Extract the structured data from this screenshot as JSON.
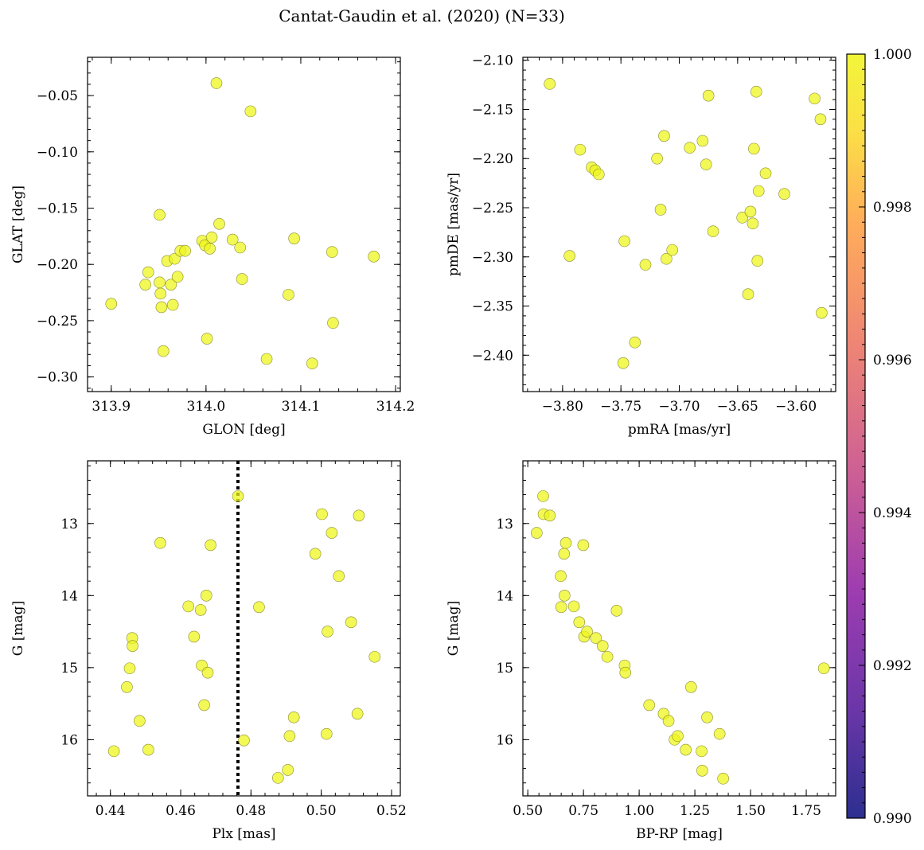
{
  "figure_title": "Cantat-Gaudin et al. (2020) (N=33)",
  "chart_data": [
    {
      "type": "scatter",
      "id": "glon-glat",
      "title": "",
      "xlabel": "GLON [deg]",
      "ylabel": "GLAT [deg]",
      "xlim": [
        313.875,
        314.205
      ],
      "ylim": [
        -0.313,
        -0.016
      ],
      "xticks": [
        313.9,
        314.0,
        314.1,
        314.2
      ],
      "xtick_labels": [
        "313.9",
        "314.0",
        "314.1",
        "314.2"
      ],
      "xminor": 0.02,
      "yticks": [
        -0.3,
        -0.25,
        -0.2,
        -0.15,
        -0.1,
        -0.05
      ],
      "ytick_labels": [
        "−0.30",
        "−0.25",
        "−0.20",
        "−0.15",
        "−0.10",
        "−0.05"
      ],
      "yminor": 0.01,
      "y_inverted": false,
      "points": [
        [
          313.9,
          -0.235
        ],
        [
          313.936,
          -0.218
        ],
        [
          313.939,
          -0.207
        ],
        [
          313.951,
          -0.156
        ],
        [
          313.951,
          -0.216
        ],
        [
          313.952,
          -0.226
        ],
        [
          313.953,
          -0.238
        ],
        [
          313.955,
          -0.277
        ],
        [
          313.959,
          -0.197
        ],
        [
          313.963,
          -0.218
        ],
        [
          313.965,
          -0.236
        ],
        [
          313.967,
          -0.195
        ],
        [
          313.97,
          -0.211
        ],
        [
          313.973,
          -0.188
        ],
        [
          313.978,
          -0.188
        ],
        [
          313.996,
          -0.179
        ],
        [
          313.999,
          -0.183
        ],
        [
          314.001,
          -0.266
        ],
        [
          314.004,
          -0.186
        ],
        [
          314.006,
          -0.176
        ],
        [
          314.011,
          -0.039
        ],
        [
          314.014,
          -0.164
        ],
        [
          314.028,
          -0.178
        ],
        [
          314.036,
          -0.185
        ],
        [
          314.038,
          -0.213
        ],
        [
          314.047,
          -0.064
        ],
        [
          314.064,
          -0.284
        ],
        [
          314.087,
          -0.227
        ],
        [
          314.093,
          -0.177
        ],
        [
          314.112,
          -0.288
        ],
        [
          314.133,
          -0.189
        ],
        [
          314.134,
          -0.252
        ],
        [
          314.177,
          -0.193
        ]
      ]
    },
    {
      "type": "scatter",
      "id": "pmra-pmde",
      "title": "",
      "xlabel": "pmRA [mas/yr]",
      "ylabel": "pmDE [mas/yr]",
      "xlim": [
        -3.834,
        -3.566
      ],
      "ylim": [
        -2.437,
        -2.097
      ],
      "xticks": [
        -3.8,
        -3.75,
        -3.7,
        -3.65,
        -3.6
      ],
      "xtick_labels": [
        "−3.80",
        "−3.75",
        "−3.70",
        "−3.65",
        "−3.60"
      ],
      "xminor": 0.01,
      "yticks": [
        -2.4,
        -2.35,
        -2.3,
        -2.25,
        -2.2,
        -2.15,
        -2.1
      ],
      "ytick_labels": [
        "−2.40",
        "−2.35",
        "−2.30",
        "−2.25",
        "−2.20",
        "−2.15",
        "−2.10"
      ],
      "yminor": 0.01,
      "y_inverted": false,
      "points": [
        [
          -3.811,
          -2.124
        ],
        [
          -3.794,
          -2.299
        ],
        [
          -3.785,
          -2.191
        ],
        [
          -3.775,
          -2.209
        ],
        [
          -3.772,
          -2.212
        ],
        [
          -3.769,
          -2.216
        ],
        [
          -3.748,
          -2.408
        ],
        [
          -3.747,
          -2.284
        ],
        [
          -3.738,
          -2.387
        ],
        [
          -3.729,
          -2.308
        ],
        [
          -3.719,
          -2.2
        ],
        [
          -3.716,
          -2.252
        ],
        [
          -3.713,
          -2.177
        ],
        [
          -3.711,
          -2.302
        ],
        [
          -3.706,
          -2.293
        ],
        [
          -3.691,
          -2.189
        ],
        [
          -3.68,
          -2.182
        ],
        [
          -3.677,
          -2.206
        ],
        [
          -3.675,
          -2.136
        ],
        [
          -3.671,
          -2.274
        ],
        [
          -3.646,
          -2.26
        ],
        [
          -3.641,
          -2.338
        ],
        [
          -3.639,
          -2.254
        ],
        [
          -3.637,
          -2.266
        ],
        [
          -3.636,
          -2.19
        ],
        [
          -3.634,
          -2.132
        ],
        [
          -3.633,
          -2.304
        ],
        [
          -3.632,
          -2.233
        ],
        [
          -3.626,
          -2.215
        ],
        [
          -3.61,
          -2.236
        ],
        [
          -3.584,
          -2.139
        ],
        [
          -3.579,
          -2.16
        ],
        [
          -3.578,
          -2.357
        ]
      ]
    },
    {
      "type": "scatter",
      "id": "plx-g",
      "title": "",
      "xlabel": "Plx [mas]",
      "ylabel": "G [mag]",
      "xlim": [
        0.4335,
        0.5225
      ],
      "ylim": [
        16.78,
        12.13
      ],
      "xticks": [
        0.44,
        0.46,
        0.48,
        0.5,
        0.52
      ],
      "xtick_labels": [
        "0.44",
        "0.46",
        "0.48",
        "0.50",
        "0.52"
      ],
      "xminor": 0.004,
      "yticks": [
        13,
        14,
        15,
        16
      ],
      "ytick_labels": [
        "13",
        "14",
        "15",
        "16"
      ],
      "yminor": 0.2,
      "y_inverted": true,
      "vline": 0.4763,
      "points": [
        [
          0.441,
          16.16
        ],
        [
          0.4447,
          15.27
        ],
        [
          0.4455,
          15.01
        ],
        [
          0.4462,
          14.59
        ],
        [
          0.4463,
          14.7
        ],
        [
          0.4483,
          15.74
        ],
        [
          0.4508,
          16.14
        ],
        [
          0.4542,
          13.27
        ],
        [
          0.4622,
          14.15
        ],
        [
          0.4638,
          14.57
        ],
        [
          0.4657,
          14.2
        ],
        [
          0.466,
          14.97
        ],
        [
          0.4667,
          15.52
        ],
        [
          0.4673,
          14.0
        ],
        [
          0.4677,
          15.07
        ],
        [
          0.4685,
          13.3
        ],
        [
          0.4763,
          12.62
        ],
        [
          0.478,
          16.01
        ],
        [
          0.4823,
          14.16
        ],
        [
          0.4877,
          16.53
        ],
        [
          0.4905,
          16.42
        ],
        [
          0.491,
          15.95
        ],
        [
          0.4922,
          15.69
        ],
        [
          0.4983,
          13.42
        ],
        [
          0.5002,
          12.87
        ],
        [
          0.5015,
          15.92
        ],
        [
          0.5018,
          14.5
        ],
        [
          0.503,
          13.13
        ],
        [
          0.505,
          13.73
        ],
        [
          0.5085,
          14.37
        ],
        [
          0.5103,
          15.64
        ],
        [
          0.5107,
          12.89
        ],
        [
          0.5152,
          14.85
        ]
      ]
    },
    {
      "type": "scatter",
      "id": "bprp-g",
      "title": "",
      "xlabel": "BP-RP [mag]",
      "ylabel": "G [mag]",
      "xlim": [
        0.478,
        1.882
      ],
      "ylim": [
        16.78,
        12.13
      ],
      "xticks": [
        0.5,
        0.75,
        1.0,
        1.25,
        1.5,
        1.75
      ],
      "xtick_labels": [
        "0.50",
        "0.75",
        "1.00",
        "1.25",
        "1.50",
        "1.75"
      ],
      "xminor": 0.05,
      "yticks": [
        13,
        14,
        15,
        16
      ],
      "ytick_labels": [
        "13",
        "14",
        "15",
        "16"
      ],
      "yminor": 0.2,
      "y_inverted": true,
      "points": [
        [
          0.54,
          13.13
        ],
        [
          0.569,
          12.62
        ],
        [
          0.571,
          12.87
        ],
        [
          0.599,
          12.89
        ],
        [
          0.648,
          13.73
        ],
        [
          0.65,
          14.16
        ],
        [
          0.663,
          13.42
        ],
        [
          0.665,
          14.0
        ],
        [
          0.671,
          13.27
        ],
        [
          0.707,
          14.15
        ],
        [
          0.731,
          14.37
        ],
        [
          0.749,
          13.3
        ],
        [
          0.753,
          14.57
        ],
        [
          0.766,
          14.5
        ],
        [
          0.806,
          14.59
        ],
        [
          0.836,
          14.7
        ],
        [
          0.857,
          14.85
        ],
        [
          0.899,
          14.21
        ],
        [
          0.935,
          14.97
        ],
        [
          0.938,
          15.07
        ],
        [
          1.045,
          15.52
        ],
        [
          1.11,
          15.64
        ],
        [
          1.132,
          15.74
        ],
        [
          1.159,
          16.0
        ],
        [
          1.173,
          15.95
        ],
        [
          1.209,
          16.14
        ],
        [
          1.233,
          15.27
        ],
        [
          1.28,
          16.16
        ],
        [
          1.283,
          16.43
        ],
        [
          1.305,
          15.69
        ],
        [
          1.361,
          15.92
        ],
        [
          1.377,
          16.54
        ],
        [
          1.829,
          15.01
        ]
      ]
    }
  ],
  "colorbar": {
    "vmin": 0.99,
    "vmax": 1.0,
    "ticks": [
      0.99,
      0.992,
      0.994,
      0.996,
      0.998,
      1.0
    ],
    "tick_labels": [
      "0.990",
      "0.992",
      "0.994",
      "0.996",
      "0.998",
      "1.000"
    ],
    "colors": [
      "#2c2f8f",
      "#6a36a8",
      "#9e3db0",
      "#cc5f95",
      "#ee8575",
      "#ffad5a",
      "#fbe046",
      "#f2f53a"
    ],
    "point_color": "#eef51c"
  }
}
